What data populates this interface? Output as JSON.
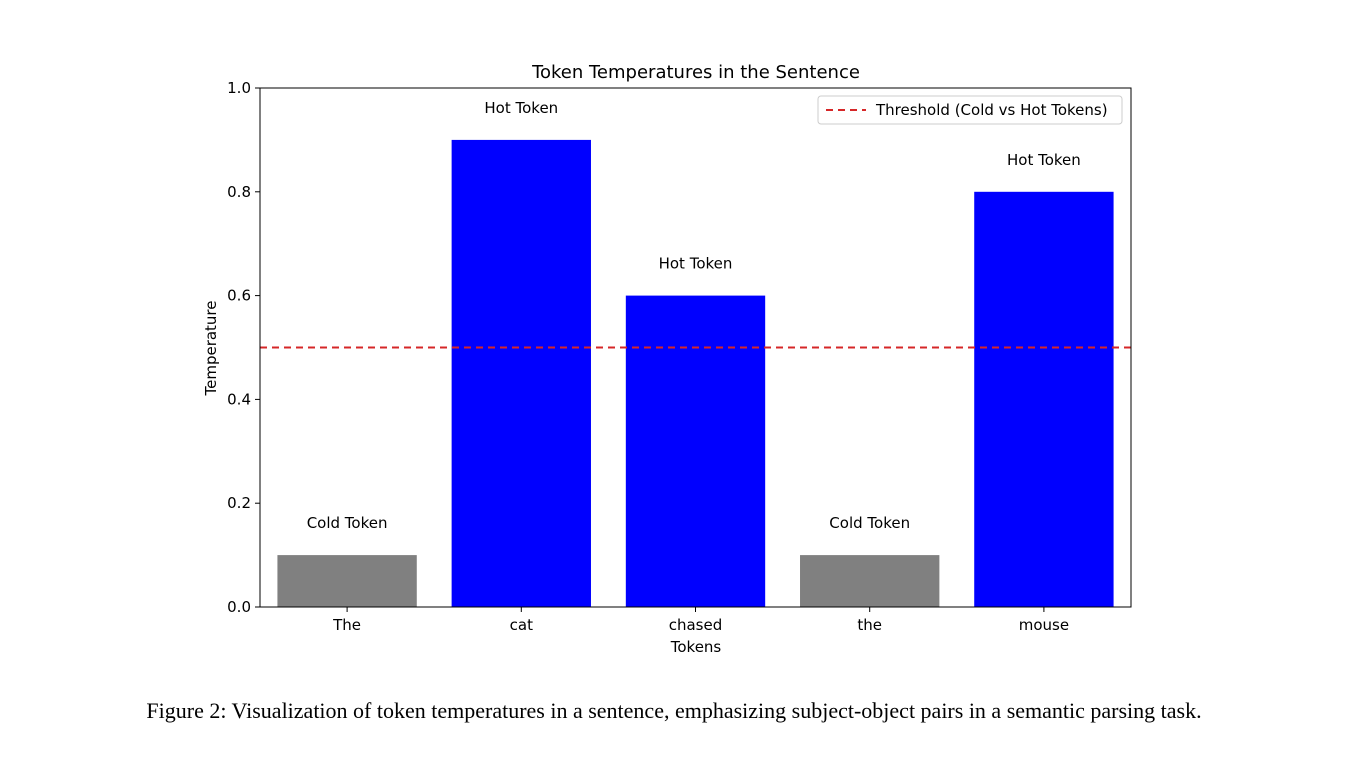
{
  "chart_data": {
    "type": "bar",
    "title": "Token Temperatures in the Sentence",
    "xlabel": "Tokens",
    "ylabel": "Temperature",
    "ylim": [
      0,
      1.0
    ],
    "yticks": [
      "0.0",
      "0.2",
      "0.4",
      "0.6",
      "0.8",
      "1.0"
    ],
    "categories": [
      "The",
      "cat",
      "chased",
      "the",
      "mouse"
    ],
    "values": [
      0.1,
      0.9,
      0.6,
      0.1,
      0.8
    ],
    "bar_labels": [
      "Cold Token",
      "Hot Token",
      "Hot Token",
      "Cold Token",
      "Hot Token"
    ],
    "bar_colors": [
      "#808080",
      "#0000ff",
      "#0000ff",
      "#808080",
      "#0000ff"
    ],
    "threshold": {
      "value": 0.5,
      "label": "Threshold (Cold vs Hot Tokens)",
      "color": "#d62728",
      "style": "dashed"
    },
    "legend_position": "upper right",
    "grid": false
  },
  "caption": "Figure 2: Visualization of token temperatures in a sentence, emphasizing subject-object pairs in a semantic parsing task."
}
